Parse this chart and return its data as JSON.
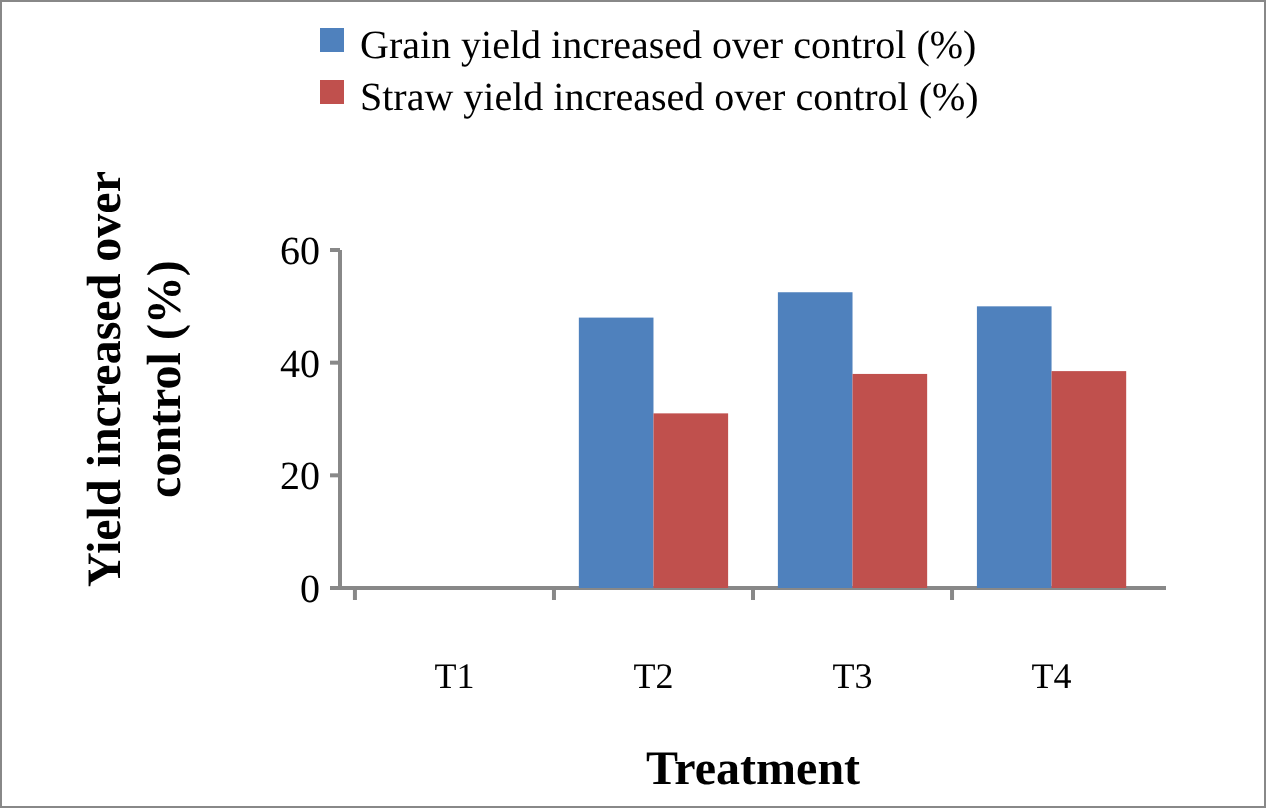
{
  "chart_data": {
    "type": "bar",
    "xlabel": "Treatment",
    "ylabel": "Yield increased over control (%)",
    "categories": [
      "T1",
      "T2",
      "T3",
      "T4"
    ],
    "series": [
      {
        "name": "Grain yield increased over control (%)",
        "color": "#4f81bd",
        "values": [
          0,
          48,
          52.5,
          50
        ]
      },
      {
        "name": "Straw yield increased over control (%)",
        "color": "#c0504d",
        "values": [
          0,
          31,
          38,
          38.5
        ]
      }
    ],
    "ylim": [
      0,
      60
    ],
    "yticks": [
      0,
      20,
      40,
      60
    ],
    "grid": false,
    "legend": "top"
  }
}
